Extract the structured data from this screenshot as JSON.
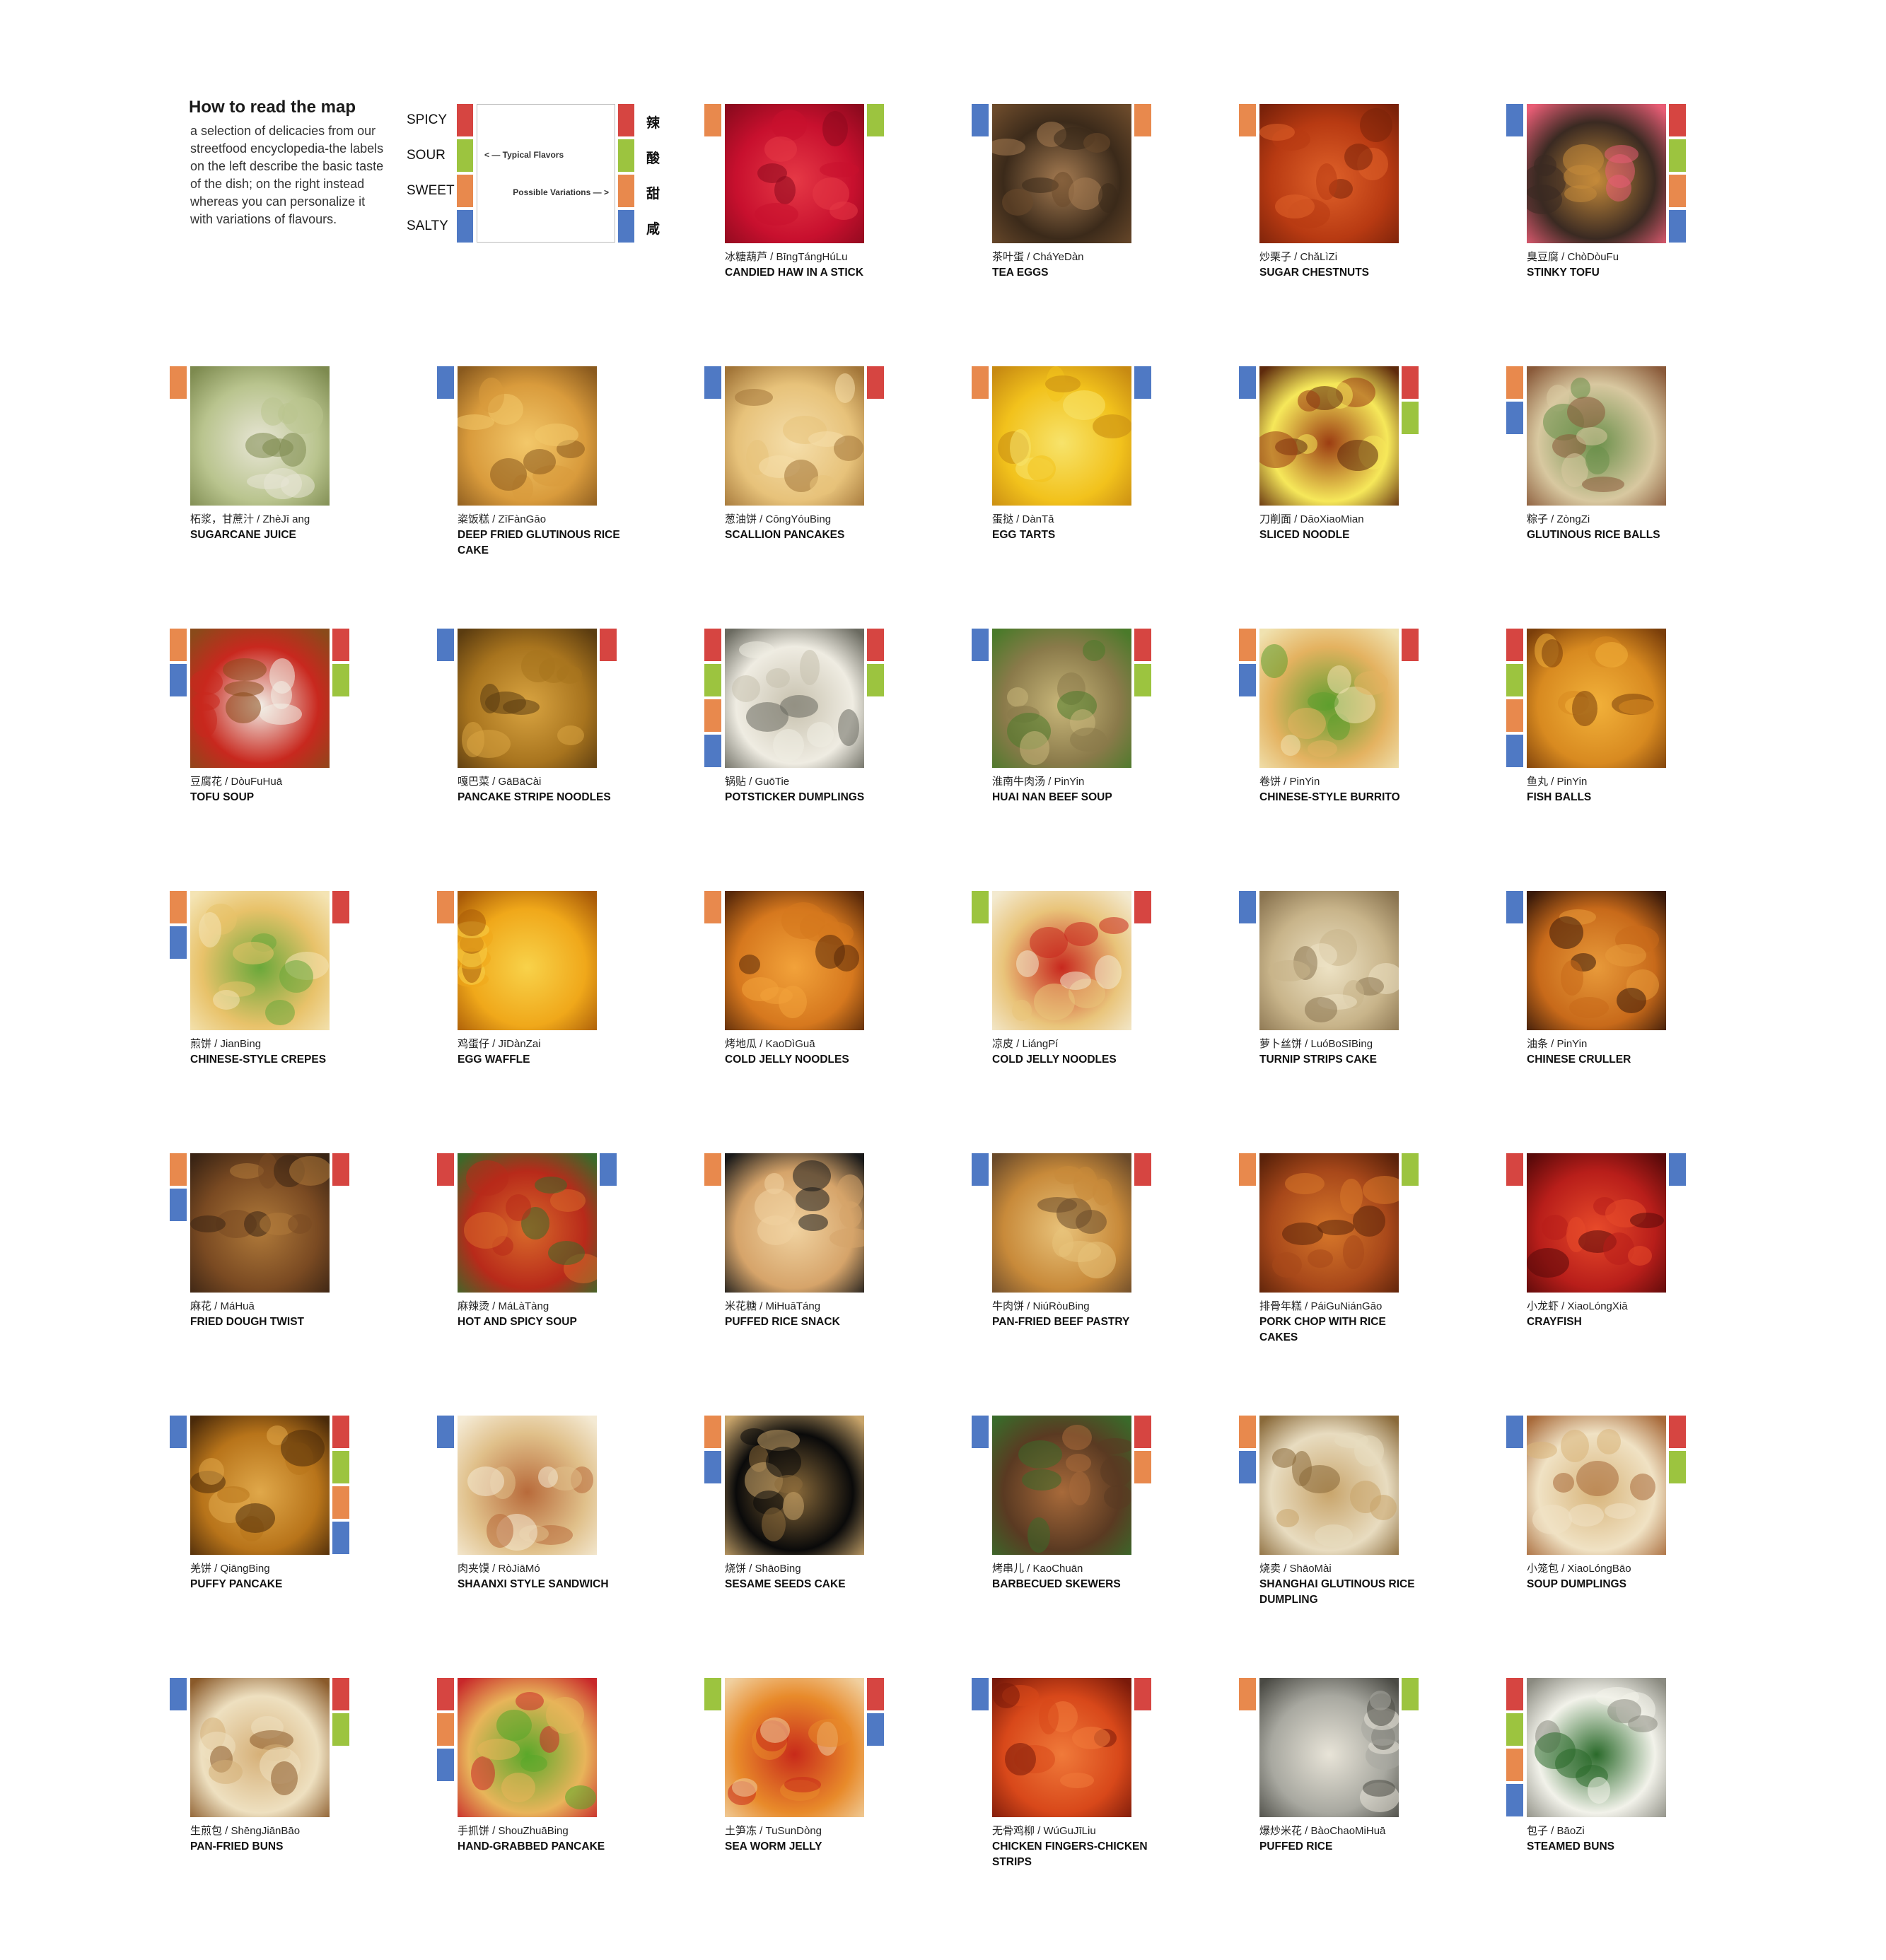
{
  "legend": {
    "title": "How to read the map",
    "description": "a selection of delicacies from our streetfood encyclopedia-the labels on the left describe the basic taste of the dish; on the right instead whereas you can personalize it with variations of flavours.",
    "flavors": [
      {
        "label": "SPICY",
        "cn": "辣",
        "color": "#d64541"
      },
      {
        "label": "SOUR",
        "cn": "酸",
        "color": "#9cc43f"
      },
      {
        "label": "SWEET",
        "cn": "甜",
        "color": "#e8894d"
      },
      {
        "label": "SALTY",
        "cn": "咸",
        "color": "#4f79c4"
      }
    ],
    "typical": "< — Typical Flavors",
    "possible": "Possible Variations — >"
  },
  "colors": {
    "spicy": "#d64541",
    "sour": "#9cc43f",
    "sweet": "#e8894d",
    "salty": "#4f79c4"
  },
  "items": [
    {
      "cn": "冰糖葫芦 / BīngTángHúLu",
      "en": "CANDIED HAW IN A STICK",
      "left": [
        "sweet"
      ],
      "right": [
        "sour"
      ],
      "palette": [
        "#c8102e",
        "#e63946",
        "#8d0a1e"
      ]
    },
    {
      "cn": "茶叶蛋 / CháYeDàn",
      "en": "TEA EGGS",
      "left": [
        "salty"
      ],
      "right": [
        "sweet"
      ],
      "palette": [
        "#3b2a1a",
        "#a67c52",
        "#6b4a2b"
      ]
    },
    {
      "cn": "炒栗子 / ChǎLìZi",
      "en": "SUGAR CHESTNUTS",
      "left": [
        "sweet"
      ],
      "right": [],
      "palette": [
        "#b83a12",
        "#e0622a",
        "#7a220a"
      ]
    },
    {
      "cn": "臭豆腐 / ChòDòuFu",
      "en": "STINKY TOFU",
      "left": [
        "salty"
      ],
      "right": [
        "spicy",
        "sour",
        "sweet",
        "salty"
      ],
      "palette": [
        "#3a2a22",
        "#c58a3a",
        "#e85d75"
      ]
    },
    {
      "cn": "柘浆，甘蔗汁 / ZhèJī ang",
      "en": "SUGARCANE JUICE",
      "left": [
        "sweet"
      ],
      "right": [],
      "palette": [
        "#b9c48e",
        "#e8e6d6",
        "#7d8a4f"
      ]
    },
    {
      "cn": "粢饭糕 / ZīFànGāo",
      "en": "DEEP FRIED GLUTINOUS RICE CAKE",
      "left": [
        "salty"
      ],
      "right": [],
      "palette": [
        "#d99b3c",
        "#f3c86a",
        "#8a5a1e"
      ]
    },
    {
      "cn": "葱油饼 / CōngYóuBing",
      "en": "SCALLION PANCAKES",
      "left": [
        "salty"
      ],
      "right": [
        "spicy"
      ],
      "palette": [
        "#e7c27a",
        "#f5deaa",
        "#a27538"
      ]
    },
    {
      "cn": "蛋挞 / DànTǎ",
      "en": "EGG TARTS",
      "left": [
        "sweet"
      ],
      "right": [
        "salty"
      ],
      "palette": [
        "#f2c21c",
        "#f7e36b",
        "#c78a12"
      ]
    },
    {
      "cn": "刀削面 / DāoXiaoMian",
      "en": "SLICED NOODLE",
      "left": [
        "salty"
      ],
      "right": [
        "spicy",
        "sour"
      ],
      "palette": [
        "#f6e85a",
        "#9c3d12",
        "#5e2a0c"
      ]
    },
    {
      "cn": "粽子 / ZòngZi",
      "en": "GLUTINOUS RICE BALLS",
      "left": [
        "sweet",
        "salty"
      ],
      "right": [],
      "palette": [
        "#d8c8a0",
        "#6a8f4a",
        "#8a5a3a"
      ]
    },
    {
      "cn": "豆腐花 / DòuFuHuā",
      "en": "TOFU SOUP",
      "left": [
        "sweet",
        "salty"
      ],
      "right": [
        "spicy",
        "sour"
      ],
      "palette": [
        "#c8281e",
        "#f2f0e8",
        "#8a4a1a"
      ]
    },
    {
      "cn": "嘎巴菜 / GāBāCài",
      "en": "PANCAKE STRIPE NOODLES",
      "left": [
        "salty"
      ],
      "right": [
        "spicy"
      ],
      "palette": [
        "#a8741e",
        "#d9a441",
        "#5b3c10"
      ]
    },
    {
      "cn": "锅贴 / GuōTie",
      "en": "POTSTICKER DUMPLINGS",
      "left": [
        "spicy",
        "sour",
        "sweet",
        "salty"
      ],
      "right": [
        "spicy",
        "sour"
      ],
      "palette": [
        "#efece2",
        "#c7c1ae",
        "#6a6a60"
      ]
    },
    {
      "cn": "淮南牛肉汤 / PinYin",
      "en": "HUAI NAN BEEF SOUP",
      "left": [
        "salty"
      ],
      "right": [
        "spicy",
        "sour"
      ],
      "palette": [
        "#8a7a4a",
        "#c9b77a",
        "#4a7a2a"
      ]
    },
    {
      "cn": "卷饼 / PinYin",
      "en": "CHINESE-STYLE BURRITO",
      "left": [
        "sweet",
        "salty"
      ],
      "right": [
        "spicy"
      ],
      "palette": [
        "#e4b260",
        "#5e9e2e",
        "#f0e2b0"
      ]
    },
    {
      "cn": "鱼丸 /     PinYin",
      "en": "FISH BALLS",
      "left": [
        "spicy",
        "sour",
        "sweet",
        "salty"
      ],
      "right": [],
      "palette": [
        "#d88a20",
        "#f2b13a",
        "#7a3e0a"
      ]
    },
    {
      "cn": "煎饼 / JianBing",
      "en": "CHINESE-STYLE CREPES",
      "left": [
        "sweet",
        "salty"
      ],
      "right": [
        "spicy"
      ],
      "palette": [
        "#e8c26a",
        "#6aa83a",
        "#f4e4b4"
      ]
    },
    {
      "cn": "鸡蛋仔 / JīDànZai",
      "en": "EGG WAFFLE",
      "left": [
        "sweet"
      ],
      "right": [],
      "palette": [
        "#f0a81a",
        "#f8d24a",
        "#a85a08"
      ]
    },
    {
      "cn": "烤地瓜 / KaoDìGuā",
      "en": "COLD JELLY NOODLES",
      "left": [
        "sweet"
      ],
      "right": [],
      "palette": [
        "#d6781e",
        "#f2a23a",
        "#5a2a0a"
      ]
    },
    {
      "cn": "凉皮 / LiángPí",
      "en": "COLD JELLY NOODLES",
      "left": [
        "sour"
      ],
      "right": [
        "spicy"
      ],
      "palette": [
        "#e9c47a",
        "#c8281e",
        "#f3ead0"
      ]
    },
    {
      "cn": "萝卜丝饼 / LuóBoSīBing",
      "en": "TURNIP STRIPS CAKE",
      "left": [
        "salty"
      ],
      "right": [],
      "palette": [
        "#c8b48a",
        "#ede2c4",
        "#8a7450"
      ]
    },
    {
      "cn": "油条 / PinYin",
      "en": "CHINESE CRULLER",
      "left": [
        "salty"
      ],
      "right": [],
      "palette": [
        "#c86a1a",
        "#e89a3a",
        "#3a1a0a"
      ]
    },
    {
      "cn": "麻花 / MáHuā",
      "en": "FRIED DOUGH TWIST",
      "left": [
        "sweet",
        "salty"
      ],
      "right": [
        "spicy"
      ],
      "palette": [
        "#7a4a22",
        "#b07a3a",
        "#3a2414"
      ]
    },
    {
      "cn": "麻辣烫 / MáLàTàng",
      "en": "HOT AND SPICY SOUP",
      "left": [
        "spicy"
      ],
      "right": [
        "salty"
      ],
      "palette": [
        "#b82a1a",
        "#d86a2a",
        "#3a6a2a"
      ]
    },
    {
      "cn": "米花糖 / MiHuāTáng",
      "en": "PUFFED RICE SNACK",
      "left": [
        "sweet"
      ],
      "right": [],
      "palette": [
        "#d6a46a",
        "#f0d2a0",
        "#1a1a1a"
      ]
    },
    {
      "cn": "牛肉饼 / NiúRòuBing",
      "en": "PAN-FRIED BEEF PASTRY",
      "left": [
        "salty"
      ],
      "right": [
        "spicy"
      ],
      "palette": [
        "#c88a3a",
        "#e8c27a",
        "#6a4a2a"
      ]
    },
    {
      "cn": "排骨年糕 / PáiGuNiánGāo",
      "en": "PORK CHOP WITH RICE CAKES",
      "left": [
        "sweet"
      ],
      "right": [
        "sour"
      ],
      "palette": [
        "#a8481a",
        "#d8782a",
        "#5a220a"
      ]
    },
    {
      "cn": "小龙虾 / XiaoLóngXiā",
      "en": "CRAYFISH",
      "left": [
        "spicy"
      ],
      "right": [
        "salty"
      ],
      "palette": [
        "#b81e1a",
        "#e84a2a",
        "#5a0a0a"
      ]
    },
    {
      "cn": "羌饼 / QiāngBing",
      "en": "PUFFY PANCAKE",
      "left": [
        "salty"
      ],
      "right": [
        "spicy",
        "sour",
        "sweet",
        "salty"
      ],
      "palette": [
        "#b8741a",
        "#e0a84a",
        "#4a2a0a"
      ]
    },
    {
      "cn": "肉夹馍 / RòJiāMó",
      "en": "SHAANXI STYLE SANDWICH",
      "left": [
        "salty"
      ],
      "right": [],
      "palette": [
        "#e0c08a",
        "#b86a3a",
        "#f4ead4"
      ]
    },
    {
      "cn": "烧饼 / ShāoBing",
      "en": "SESAME SEEDS CAKE",
      "left": [
        "sweet",
        "salty"
      ],
      "right": [],
      "palette": [
        "#0a0a0a",
        "#8a6a3a",
        "#c8a46a"
      ]
    },
    {
      "cn": "烤串儿 / KaoChuān",
      "en": "BARBECUED SKEWERS",
      "left": [
        "salty"
      ],
      "right": [
        "spicy",
        "sweet"
      ],
      "palette": [
        "#5a3a22",
        "#a86a3a",
        "#3a6a2a"
      ]
    },
    {
      "cn": "烧卖 / ShāoMài",
      "en": "SHANGHAI GLUTINOUS RICE DUMPLING",
      "left": [
        "sweet",
        "salty"
      ],
      "right": [],
      "palette": [
        "#e8dcc0",
        "#c8a46a",
        "#8a6a3a"
      ]
    },
    {
      "cn": "小笼包 / XiaoLóngBāo",
      "en": "SOUP DUMPLINGS",
      "left": [
        "salty"
      ],
      "right": [
        "spicy",
        "sour"
      ],
      "palette": [
        "#f0e2c4",
        "#d8b47a",
        "#a86a3a"
      ]
    },
    {
      "cn": "生煎包 / ShēngJiānBāo",
      "en": "PAN-FRIED BUNS",
      "left": [
        "salty"
      ],
      "right": [
        "spicy",
        "sour"
      ],
      "palette": [
        "#eee0c0",
        "#d6b078",
        "#8a5a2a"
      ]
    },
    {
      "cn": "手抓饼 / ShouZhuāBing",
      "en": "HAND-GRABBED PANCAKE",
      "left": [
        "spicy",
        "sweet",
        "salty"
      ],
      "right": [],
      "palette": [
        "#e8b45a",
        "#5aa82a",
        "#c8282a"
      ]
    },
    {
      "cn": "土笋冻 / TuSunDòng",
      "en": "SEA WORM JELLY",
      "left": [
        "sour"
      ],
      "right": [
        "spicy",
        "salty"
      ],
      "palette": [
        "#e88a2a",
        "#c82a1a",
        "#f0d0a0"
      ]
    },
    {
      "cn": "无骨鸡柳 / WúGuJīLiu",
      "en": "CHICKEN FINGERS-CHICKEN STRIPS",
      "left": [
        "salty"
      ],
      "right": [
        "spicy"
      ],
      "palette": [
        "#d8481a",
        "#f07a3a",
        "#7a1a0a"
      ]
    },
    {
      "cn": "爆炒米花 / BàoChaoMiHuā",
      "en": "PUFFED RICE",
      "left": [
        "sweet"
      ],
      "right": [
        "sour"
      ],
      "palette": [
        "#a8a8a0",
        "#e8e4d8",
        "#4a4a44"
      ]
    },
    {
      "cn": "包子 / BāoZi",
      "en": "STEAMED BUNS",
      "left": [
        "spicy",
        "sour",
        "sweet",
        "salty"
      ],
      "right": [],
      "palette": [
        "#f2f2ea",
        "#2a6a2a",
        "#8a8a80"
      ]
    }
  ]
}
